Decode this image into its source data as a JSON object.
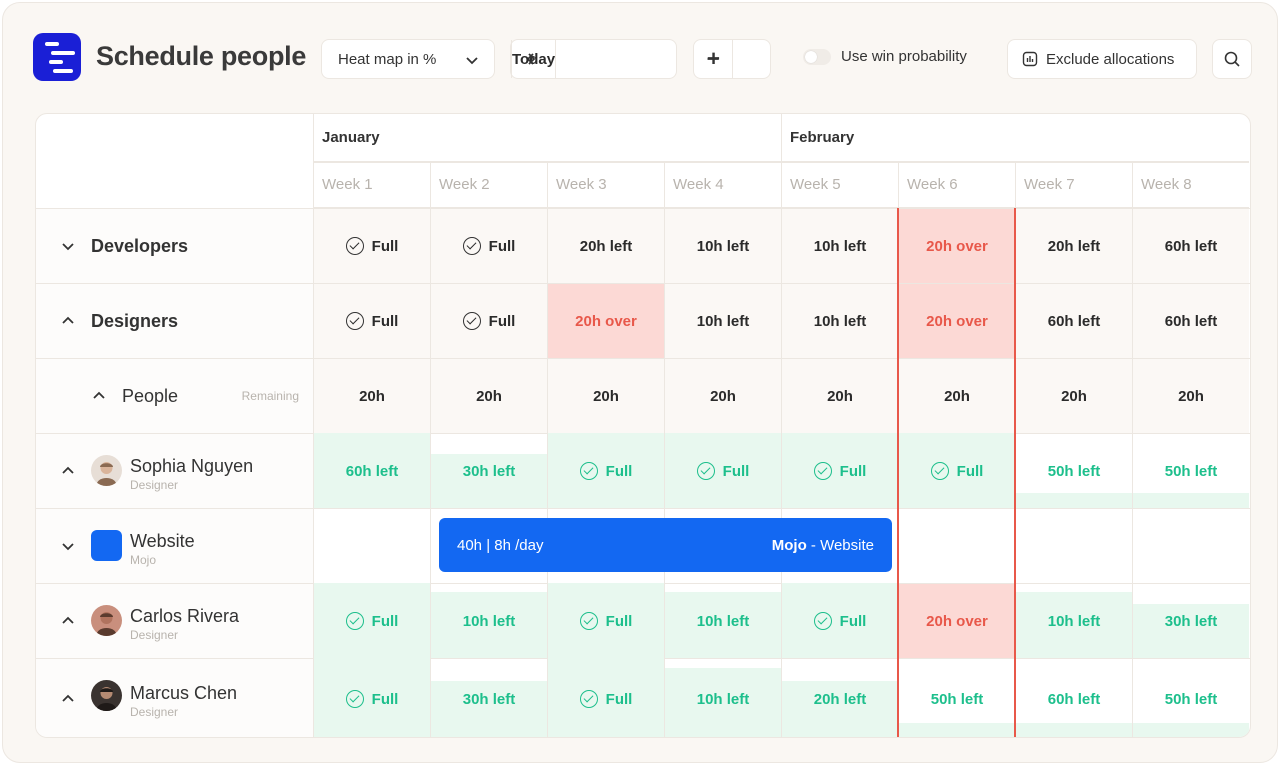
{
  "header": {
    "title": "Schedule people",
    "view_select": "Heat map in %",
    "today_label": "Today",
    "zoom_out": "−",
    "zoom_in": "+",
    "win_probability_label": "Use win probability",
    "exclude_label": "Exclude allocations"
  },
  "months": [
    "January",
    "February"
  ],
  "weeks": [
    "Week 1",
    "Week 2",
    "Week 3",
    "Week 4",
    "Week 5",
    "Week 6",
    "Week 7",
    "Week 8"
  ],
  "rows": {
    "developers": {
      "label": "Developers",
      "cells": [
        "Full",
        "Full",
        "20h left",
        "10h left",
        "10h left",
        "20h over",
        "20h left",
        "60h left"
      ]
    },
    "designers": {
      "label": "Designers",
      "cells": [
        "Full",
        "Full",
        "20h over",
        "10h left",
        "10h left",
        "20h over",
        "60h left",
        "60h left"
      ]
    },
    "people": {
      "label": "People",
      "remaining": "Remaining",
      "cells": [
        "20h",
        "20h",
        "20h",
        "20h",
        "20h",
        "20h",
        "20h",
        "20h"
      ]
    },
    "sophia": {
      "name": "Sophia Nguyen",
      "role": "Designer",
      "cells": [
        "60h left",
        "30h left",
        "Full",
        "Full",
        "Full",
        "Full",
        "50h left",
        "50h left"
      ]
    },
    "website": {
      "name": "Website",
      "client": "Mojo"
    },
    "carlos": {
      "name": "Carlos Rivera",
      "role": "Designer",
      "cells": [
        "Full",
        "10h left",
        "Full",
        "10h left",
        "Full",
        "20h over",
        "10h left",
        "30h left"
      ]
    },
    "marcus": {
      "name": "Marcus Chen",
      "role": "Designer",
      "cells": [
        "Full",
        "30h left",
        "Full",
        "10h left",
        "20h left",
        "50h left",
        "60h left",
        "50h left"
      ]
    }
  },
  "allocation": {
    "hours": "40h | 8h /day",
    "client": "Mojo",
    "project": " - Website"
  },
  "colors": {
    "brand": "#1a1fd6",
    "allocation": "#1368f2",
    "over": "#e8584a",
    "available": "#1dbf8c"
  }
}
